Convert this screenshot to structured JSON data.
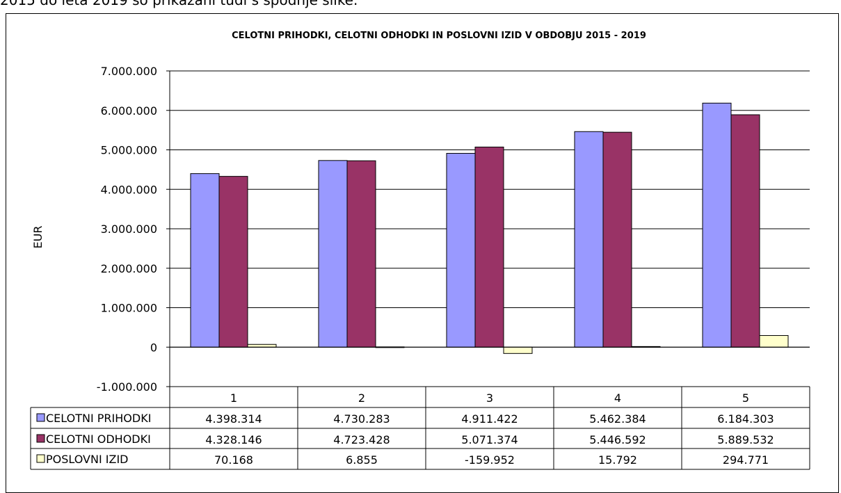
{
  "intro_text": "2015 do leta 2019 so prikazani tudi s spodnje slike.",
  "chart_data": {
    "type": "bar",
    "title": "CELOTNI PRIHODKI, CELOTNI ODHODKI IN POSLOVNI IZID V OBDOBJU 2015 - 2019",
    "ylabel": "EUR",
    "xlabel": "",
    "categories": [
      "1",
      "2",
      "3",
      "4",
      "5"
    ],
    "ylim": [
      -1000000,
      7000000
    ],
    "yticks": [
      7000000,
      6000000,
      5000000,
      4000000,
      3000000,
      2000000,
      1000000,
      0,
      -1000000
    ],
    "ytick_labels": [
      "7.000.000",
      "6.000.000",
      "5.000.000",
      "4.000.000",
      "3.000.000",
      "2.000.000",
      "1.000.000",
      "0",
      "-1.000.000"
    ],
    "grid": true,
    "legend": "data-table",
    "series": [
      {
        "name": "CELOTNI PRIHODKI",
        "color": "#9999ff",
        "values": [
          4398314,
          4730283,
          4911422,
          5462384,
          6184303
        ],
        "labels": [
          "4.398.314",
          "4.730.283",
          "4.911.422",
          "5.462.384",
          "6.184.303"
        ]
      },
      {
        "name": "CELOTNI ODHODKI",
        "color": "#993366",
        "values": [
          4328146,
          4723428,
          5071374,
          5446592,
          5889532
        ],
        "labels": [
          "4.328.146",
          "4.723.428",
          "5.071.374",
          "5.446.592",
          "5.889.532"
        ]
      },
      {
        "name": "POSLOVNI IZID",
        "color": "#ffffcc",
        "values": [
          70168,
          6855,
          -159952,
          15792,
          294771
        ],
        "labels": [
          "70.168",
          "6.855",
          "-159.952",
          "15.792",
          "294.771"
        ]
      }
    ]
  }
}
